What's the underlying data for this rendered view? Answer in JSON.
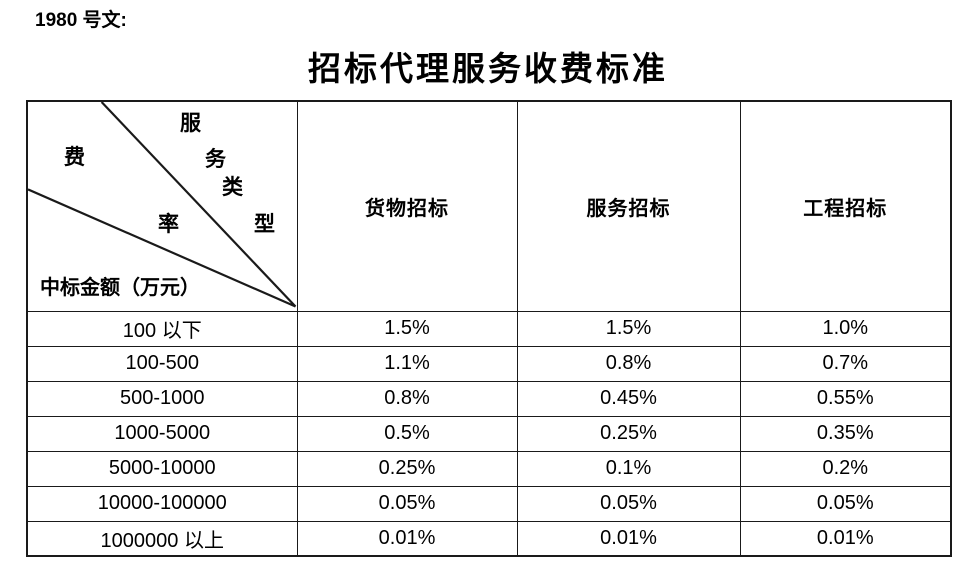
{
  "doc": {
    "ref_label": "1980 号文:",
    "title": "招标代理服务收费标准"
  },
  "table": {
    "corner": {
      "fee_rate": "费率",
      "service_type": "服务类型",
      "row_axis_label": "中标金额（万元）"
    },
    "columns": [
      "货物招标",
      "服务招标",
      "工程招标"
    ],
    "rows": [
      {
        "range": "100 以下",
        "values": [
          "1.5%",
          "1.5%",
          "1.0%"
        ]
      },
      {
        "range": "100-500",
        "values": [
          "1.1%",
          "0.8%",
          "0.7%"
        ]
      },
      {
        "range": "500-1000",
        "values": [
          "0.8%",
          "0.45%",
          "0.55%"
        ]
      },
      {
        "range": "1000-5000",
        "values": [
          "0.5%",
          "0.25%",
          "0.35%"
        ]
      },
      {
        "range": "5000-10000",
        "values": [
          "0.25%",
          "0.1%",
          "0.2%"
        ]
      },
      {
        "range": "10000-100000",
        "values": [
          "0.05%",
          "0.05%",
          "0.05%"
        ]
      },
      {
        "range": "1000000 以上",
        "values": [
          "0.01%",
          "0.01%",
          "0.01%"
        ]
      }
    ],
    "colors": {
      "border": "#1a1a1a",
      "text": "#000000",
      "background": "#ffffff"
    }
  }
}
